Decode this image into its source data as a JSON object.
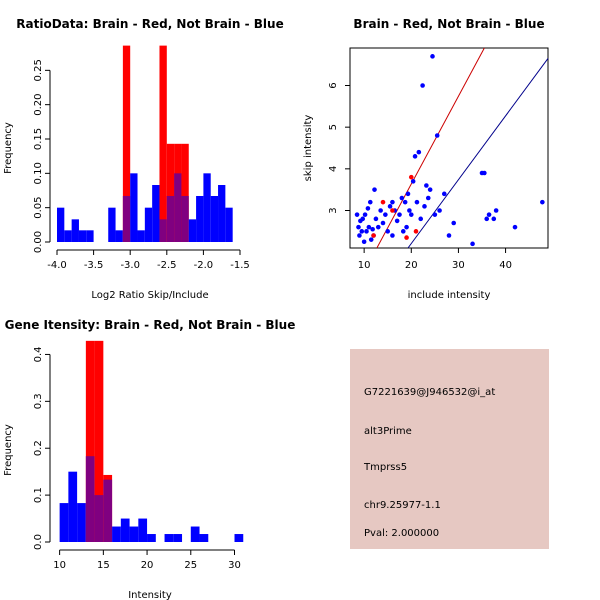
{
  "colors": {
    "brain": "#ff0000",
    "not_brain": "#0000ff",
    "overlap": "#800080",
    "line_brain": "#cc0000",
    "line_not_brain": "#00008b",
    "info_bg": "#e6c8c2",
    "pval": "#8b0000"
  },
  "chart_data": [
    {
      "type": "bar",
      "subtype": "overlapping-histogram",
      "title": "RatioData: Brain - Red, Not Brain - Blue",
      "xlabel": "Log2 Ratio Skip/Include",
      "ylabel": "Frequency",
      "xlim": [
        -4.0,
        -1.5
      ],
      "ylim": [
        0,
        0.3
      ],
      "xticks": [
        "-4.0",
        "-3.5",
        "-3.0",
        "-2.5",
        "-2.0",
        "-1.5"
      ],
      "yticks": [
        "0.00",
        "0.05",
        "0.10",
        "0.15",
        "0.20",
        "0.25"
      ],
      "bin_edges": [
        -4.0,
        -3.9,
        -3.8,
        -3.7,
        -3.6,
        -3.5,
        -3.4,
        -3.3,
        -3.2,
        -3.1,
        -3.0,
        -2.9,
        -2.8,
        -2.7,
        -2.6,
        -2.5,
        -2.4,
        -2.3,
        -2.2,
        -2.1,
        -2.0,
        -1.9,
        -1.8,
        -1.7,
        -1.6,
        -1.5
      ],
      "series": [
        {
          "name": "Not Brain",
          "color": "blue",
          "values": [
            0.05,
            0.017,
            0.033,
            0.017,
            0.017,
            0,
            0,
            0.05,
            0.017,
            0.067,
            0.1,
            0.017,
            0.05,
            0.083,
            0.033,
            0.067,
            0.1,
            0.067,
            0.033,
            0.067,
            0.1,
            0.067,
            0.083,
            0.05,
            0
          ]
        },
        {
          "name": "Brain",
          "color": "red",
          "values": [
            0,
            0,
            0,
            0,
            0,
            0,
            0,
            0,
            0,
            0.286,
            0,
            0,
            0,
            0,
            0.286,
            0.143,
            0.143,
            0.143,
            0,
            0,
            0,
            0,
            0,
            0,
            0
          ]
        }
      ]
    },
    {
      "type": "scatter",
      "title": "Brain - Red, Not Brain - Blue",
      "xlabel": "include intensity",
      "ylabel": "skip intensity",
      "xlim": [
        7,
        49
      ],
      "ylim": [
        2.1,
        6.9
      ],
      "xticks": [
        10,
        20,
        30,
        40
      ],
      "yticks": [
        3,
        4,
        5,
        6
      ],
      "series": [
        {
          "name": "Not Brain",
          "color": "blue",
          "points": [
            [
              8.5,
              2.9
            ],
            [
              8.8,
              2.6
            ],
            [
              9.0,
              2.4
            ],
            [
              9.2,
              2.75
            ],
            [
              9.5,
              2.5
            ],
            [
              9.7,
              2.8
            ],
            [
              10.0,
              2.25
            ],
            [
              10.2,
              2.9
            ],
            [
              10.5,
              2.5
            ],
            [
              10.8,
              3.05
            ],
            [
              11.0,
              2.6
            ],
            [
              11.3,
              3.2
            ],
            [
              11.5,
              2.3
            ],
            [
              11.8,
              2.55
            ],
            [
              12.0,
              2.4
            ],
            [
              12.2,
              3.5
            ],
            [
              12.5,
              2.8
            ],
            [
              13.0,
              2.6
            ],
            [
              13.5,
              3.0
            ],
            [
              14.0,
              2.7
            ],
            [
              14.5,
              2.9
            ],
            [
              15.0,
              2.5
            ],
            [
              15.5,
              3.1
            ],
            [
              16.0,
              2.4
            ],
            [
              16.5,
              3.0
            ],
            [
              17.0,
              2.75
            ],
            [
              17.5,
              2.9
            ],
            [
              18.0,
              3.3
            ],
            [
              18.3,
              2.5
            ],
            [
              18.7,
              3.2
            ],
            [
              19.0,
              2.6
            ],
            [
              19.3,
              3.4
            ],
            [
              19.6,
              3.0
            ],
            [
              20.0,
              2.9
            ],
            [
              20.4,
              3.7
            ],
            [
              20.8,
              4.3
            ],
            [
              21.2,
              3.2
            ],
            [
              21.6,
              4.4
            ],
            [
              22.0,
              2.8
            ],
            [
              22.4,
              6.0
            ],
            [
              22.8,
              3.1
            ],
            [
              23.2,
              3.6
            ],
            [
              23.6,
              3.3
            ],
            [
              24.0,
              3.5
            ],
            [
              24.5,
              6.7
            ],
            [
              25.0,
              2.9
            ],
            [
              25.5,
              4.8
            ],
            [
              26.0,
              3.0
            ],
            [
              27.0,
              3.4
            ],
            [
              28.0,
              2.4
            ],
            [
              29.0,
              2.7
            ],
            [
              33.0,
              2.2
            ],
            [
              35.0,
              3.9
            ],
            [
              35.5,
              3.9
            ],
            [
              36.0,
              2.8
            ],
            [
              36.5,
              2.9
            ],
            [
              37.5,
              2.8
            ],
            [
              42.0,
              2.6
            ],
            [
              47.8,
              3.2
            ],
            [
              38.0,
              3.0
            ],
            [
              16.0,
              3.2
            ]
          ]
        },
        {
          "name": "Brain",
          "color": "red",
          "points": [
            [
              12.0,
              2.4
            ],
            [
              14.0,
              3.2
            ],
            [
              16.0,
              3.0
            ],
            [
              19.0,
              2.35
            ],
            [
              20.0,
              3.8
            ],
            [
              21.0,
              2.5
            ]
          ]
        }
      ],
      "lines": [
        {
          "name": "Brain fit",
          "color": "red",
          "from": [
            12.7,
            2.1
          ],
          "to": [
            35.5,
            6.9
          ]
        },
        {
          "name": "Not Brain fit",
          "color": "darkblue",
          "from": [
            19.3,
            2.1
          ],
          "to": [
            49.0,
            6.65
          ]
        }
      ]
    },
    {
      "type": "bar",
      "subtype": "overlapping-histogram",
      "title": "Gene Itensity: Brain - Red, Not Brain - Blue",
      "xlabel": "Intensity",
      "ylabel": "Frequency",
      "xlim": [
        9.7,
        31.2
      ],
      "ylim": [
        0,
        0.45
      ],
      "xticks": [
        "10",
        "15",
        "20",
        "25",
        "30"
      ],
      "yticks": [
        "0.0",
        "0.1",
        "0.2",
        "0.3",
        "0.4"
      ],
      "bin_edges": [
        10,
        11,
        12,
        13,
        14,
        15,
        16,
        17,
        18,
        19,
        20,
        21,
        22,
        23,
        24,
        25,
        26,
        27,
        28,
        29,
        30,
        31
      ],
      "series": [
        {
          "name": "Not Brain",
          "color": "blue",
          "values": [
            0.083,
            0.15,
            0.083,
            0.183,
            0.1,
            0.133,
            0.033,
            0.05,
            0.033,
            0.05,
            0.017,
            0,
            0.017,
            0.017,
            0,
            0.033,
            0.017,
            0,
            0,
            0,
            0.017
          ]
        },
        {
          "name": "Brain",
          "color": "red",
          "values": [
            0,
            0,
            0,
            0.429,
            0.429,
            0.143,
            0,
            0,
            0,
            0,
            0,
            0,
            0,
            0,
            0,
            0,
            0,
            0,
            0,
            0,
            0
          ]
        }
      ]
    }
  ],
  "info_box": {
    "probe": "G7221639@J946532@i_at",
    "event_type": "alt3Prime",
    "gene": "Tmprss5",
    "location": "chr9.25977-1.1",
    "pval": "Pval: 2.000000"
  }
}
